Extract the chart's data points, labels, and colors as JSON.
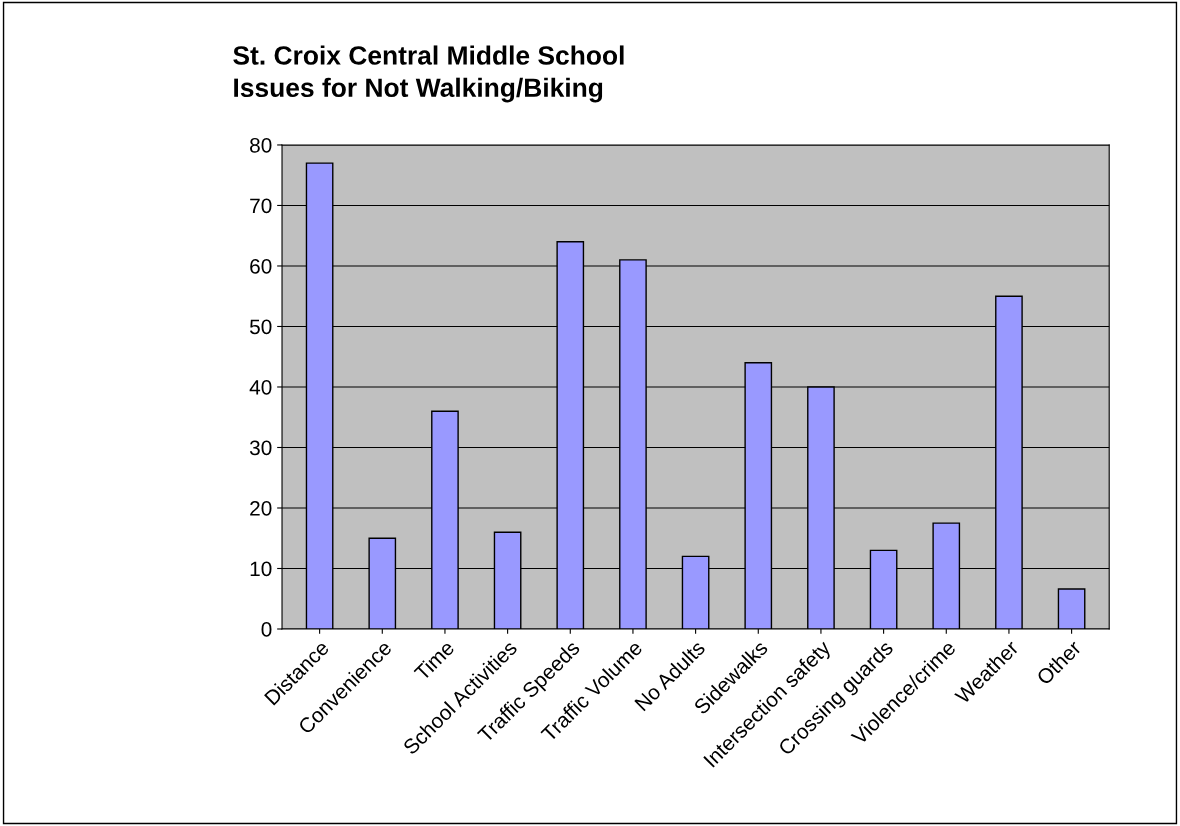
{
  "chart_data": {
    "type": "bar",
    "title": "St. Croix Central Middle School\nIssues for Not Walking/Biking",
    "categories": [
      "Distance",
      "Convenience",
      "Time",
      "School Activities",
      "Traffic Speeds",
      "Traffic Volume",
      "No Adults",
      "Sidewalks",
      "Intersection safety",
      "Crossing guards",
      "Violence/crime",
      "Weather",
      "Other"
    ],
    "values": [
      77,
      15,
      36,
      16,
      64,
      61,
      12,
      44,
      40,
      13,
      17.5,
      55,
      6.6
    ],
    "color": "#9999ff",
    "ylim": [
      0,
      80
    ],
    "yticks": [
      0,
      10,
      20,
      30,
      40,
      50,
      60,
      70,
      80
    ],
    "grid": "y"
  }
}
